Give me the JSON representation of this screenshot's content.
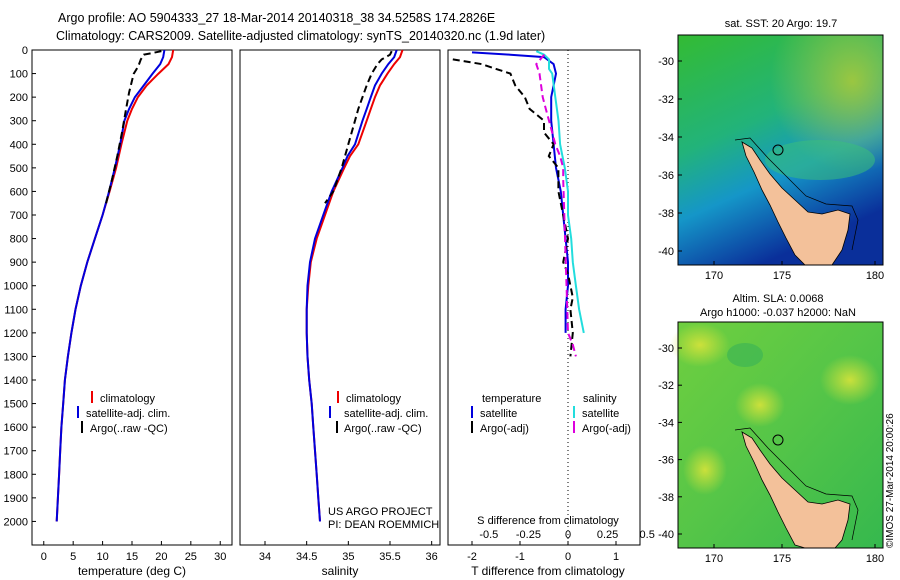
{
  "header": {
    "line1": "Argo profile: AO 5904333_27 18-Mar-2014 20140318_38 34.5258S 174.2826E",
    "line2": "Climatology: CARS2009. Satellite-adjusted climatology: synTS_20140320.nc (1.9d later)"
  },
  "colors": {
    "climatology": "#ee0000",
    "satellite": "#0000dd",
    "argo": "#000000",
    "sal_satellite": "#22dddd",
    "sal_argo": "#dd00dd",
    "land": "#f3c19a",
    "coast": "#000000"
  },
  "chart_data": [
    {
      "type": "line",
      "xlabel": "temperature (deg C)",
      "xlim": [
        -2,
        32
      ],
      "ylim": [
        2100,
        0
      ],
      "x_ticks": [
        0,
        5,
        10,
        15,
        20,
        25,
        30
      ],
      "y_ticks": [
        0,
        100,
        200,
        300,
        400,
        500,
        600,
        700,
        800,
        900,
        1000,
        1100,
        1200,
        1300,
        1400,
        1500,
        1600,
        1700,
        1800,
        1900,
        2000
      ],
      "legend": [
        "climatology",
        "satellite-adj. clim.",
        "Argo(..raw -QC)"
      ],
      "series": [
        {
          "name": "climatology",
          "points": [
            [
              22,
              0
            ],
            [
              21.8,
              30
            ],
            [
              21.2,
              60
            ],
            [
              19.5,
              100
            ],
            [
              17.5,
              150
            ],
            [
              16,
              200
            ],
            [
              15,
              250
            ],
            [
              14.2,
              300
            ],
            [
              13.2,
              400
            ],
            [
              12.3,
              500
            ],
            [
              11.2,
              600
            ],
            [
              10,
              700
            ],
            [
              8.7,
              800
            ],
            [
              7.4,
              900
            ],
            [
              6.3,
              1000
            ],
            [
              5.4,
              1100
            ],
            [
              4.7,
              1200
            ],
            [
              4.1,
              1300
            ],
            [
              3.6,
              1400
            ],
            [
              3.3,
              1500
            ],
            [
              3.0,
              1600
            ],
            [
              2.8,
              1700
            ],
            [
              2.6,
              1800
            ],
            [
              2.4,
              1900
            ],
            [
              2.2,
              2000
            ]
          ]
        },
        {
          "name": "satellite-adj. clim.",
          "points": [
            [
              20.5,
              0
            ],
            [
              20.3,
              30
            ],
            [
              19.8,
              60
            ],
            [
              18.5,
              100
            ],
            [
              17,
              150
            ],
            [
              15.5,
              200
            ],
            [
              14.5,
              250
            ],
            [
              13.7,
              300
            ],
            [
              13,
              400
            ],
            [
              12.1,
              500
            ],
            [
              11.1,
              600
            ],
            [
              10,
              700
            ],
            [
              8.7,
              800
            ],
            [
              7.4,
              900
            ],
            [
              6.3,
              1000
            ],
            [
              5.4,
              1100
            ],
            [
              4.7,
              1200
            ],
            [
              4.1,
              1300
            ],
            [
              3.6,
              1400
            ],
            [
              3.3,
              1500
            ],
            [
              3.0,
              1600
            ],
            [
              2.8,
              1700
            ],
            [
              2.6,
              1800
            ],
            [
              2.4,
              1900
            ],
            [
              2.2,
              2000
            ]
          ]
        },
        {
          "name": "Argo(..raw -QC)",
          "points": [
            [
              20,
              5
            ],
            [
              17,
              20
            ],
            [
              16.5,
              40
            ],
            [
              16.2,
              60
            ],
            [
              15.8,
              80
            ],
            [
              15.3,
              100
            ],
            [
              15,
              130
            ],
            [
              14.5,
              180
            ],
            [
              14,
              250
            ],
            [
              13.3,
              350
            ],
            [
              12.5,
              450
            ],
            [
              11.6,
              550
            ],
            [
              10.6,
              650
            ]
          ]
        }
      ]
    },
    {
      "type": "line",
      "xlabel": "salinity",
      "xlim": [
        33.7,
        36.1
      ],
      "ylim": [
        2100,
        0
      ],
      "x_ticks": [
        34,
        34.5,
        35,
        35.5,
        36
      ],
      "legend": [
        "climatology",
        "satellite-adj. clim.",
        "Argo(..raw -QC)"
      ],
      "annotations": [
        "US ARGO PROJECT",
        "PI: DEAN ROEMMICH"
      ],
      "series": [
        {
          "name": "climatology",
          "points": [
            [
              35.65,
              0
            ],
            [
              35.62,
              30
            ],
            [
              35.55,
              60
            ],
            [
              35.47,
              100
            ],
            [
              35.38,
              150
            ],
            [
              35.32,
              200
            ],
            [
              35.27,
              250
            ],
            [
              35.22,
              300
            ],
            [
              35.12,
              400
            ],
            [
              35.02,
              450
            ],
            [
              34.95,
              500
            ],
            [
              34.82,
              600
            ],
            [
              34.72,
              700
            ],
            [
              34.62,
              800
            ],
            [
              34.55,
              900
            ],
            [
              34.52,
              1000
            ],
            [
              34.5,
              1100
            ],
            [
              34.5,
              1200
            ],
            [
              34.51,
              1300
            ],
            [
              34.53,
              1400
            ],
            [
              34.56,
              1500
            ],
            [
              34.58,
              1600
            ],
            [
              34.6,
              1700
            ],
            [
              34.62,
              1800
            ],
            [
              34.64,
              1900
            ],
            [
              34.66,
              2000
            ]
          ]
        },
        {
          "name": "satellite-adj. clim.",
          "points": [
            [
              35.58,
              0
            ],
            [
              35.55,
              30
            ],
            [
              35.48,
              60
            ],
            [
              35.4,
              100
            ],
            [
              35.32,
              150
            ],
            [
              35.27,
              200
            ],
            [
              35.22,
              250
            ],
            [
              35.17,
              300
            ],
            [
              35.08,
              400
            ],
            [
              34.99,
              450
            ],
            [
              34.93,
              500
            ],
            [
              34.8,
              600
            ],
            [
              34.7,
              700
            ],
            [
              34.6,
              800
            ],
            [
              34.54,
              900
            ],
            [
              34.51,
              1000
            ],
            [
              34.5,
              1100
            ],
            [
              34.5,
              1200
            ],
            [
              34.51,
              1300
            ],
            [
              34.53,
              1400
            ],
            [
              34.56,
              1500
            ],
            [
              34.58,
              1600
            ],
            [
              34.6,
              1700
            ],
            [
              34.62,
              1800
            ],
            [
              34.64,
              1900
            ],
            [
              34.66,
              2000
            ]
          ]
        },
        {
          "name": "Argo(..raw -QC)",
          "points": [
            [
              35.52,
              5
            ],
            [
              35.5,
              20
            ],
            [
              35.4,
              40
            ],
            [
              35.35,
              60
            ],
            [
              35.28,
              100
            ],
            [
              35.22,
              150
            ],
            [
              35.17,
              200
            ],
            [
              35.12,
              250
            ],
            [
              35.08,
              300
            ],
            [
              35.0,
              400
            ],
            [
              34.92,
              500
            ],
            [
              34.82,
              600
            ],
            [
              34.72,
              650
            ]
          ]
        }
      ]
    },
    {
      "type": "line",
      "xlabel": "T difference from climatology",
      "xlabel2": "S difference from climatology",
      "xlim": [
        -2.5,
        1.5
      ],
      "ylim": [
        2100,
        0
      ],
      "x_ticks": [
        "-2",
        "-1",
        "0",
        "1"
      ],
      "x_ticks2": [
        "-0.5",
        "-0.25",
        "0",
        "0.25",
        "0.5"
      ],
      "legend": {
        "temperature": [
          "satellite",
          "Argo(-adj)"
        ],
        "salinity": [
          "satellite",
          "Argo(-adj)"
        ]
      },
      "legend_headers": [
        "temperature",
        "salinity"
      ],
      "series": [
        {
          "name": "temperature satellite",
          "points": [
            [
              -2,
              10
            ],
            [
              -1.2,
              20
            ],
            [
              -0.5,
              30
            ],
            [
              -0.3,
              60
            ],
            [
              -0.25,
              100
            ],
            [
              -0.3,
              150
            ],
            [
              -0.35,
              200
            ],
            [
              -0.35,
              300
            ],
            [
              -0.3,
              400
            ],
            [
              -0.25,
              500
            ],
            [
              -0.15,
              600
            ],
            [
              -0.1,
              700
            ],
            [
              -0.05,
              800
            ],
            [
              0,
              900
            ],
            [
              0,
              1000
            ],
            [
              -0.05,
              1100
            ],
            [
              -0.05,
              1200
            ]
          ]
        },
        {
          "name": "temperature Argo(-adj)",
          "points": [
            [
              -2.4,
              40
            ],
            [
              -1.8,
              60
            ],
            [
              -1.5,
              80
            ],
            [
              -1.2,
              100
            ],
            [
              -1.1,
              150
            ],
            [
              -0.9,
              200
            ],
            [
              -0.8,
              250
            ],
            [
              -0.5,
              300
            ],
            [
              -0.5,
              350
            ],
            [
              -0.3,
              400
            ],
            [
              -0.4,
              450
            ],
            [
              -0.2,
              500
            ],
            [
              -0.2,
              600
            ],
            [
              -0.1,
              700
            ],
            [
              0,
              800
            ],
            [
              -0.1,
              900
            ],
            [
              0,
              950
            ],
            [
              0.05,
              1000
            ],
            [
              0.1,
              1050
            ],
            [
              0.05,
              1100
            ],
            [
              0.1,
              1200
            ],
            [
              0.05,
              1300
            ]
          ]
        },
        {
          "name": "salinity satellite",
          "points": [
            [
              -0.2,
              5
            ],
            [
              -0.15,
              20
            ],
            [
              -0.12,
              40
            ],
            [
              -0.12,
              60
            ],
            [
              -0.12,
              80
            ],
            [
              -0.1,
              100
            ],
            [
              -0.08,
              200
            ],
            [
              -0.06,
              300
            ],
            [
              -0.05,
              400
            ],
            [
              -0.02,
              500
            ],
            [
              0,
              600
            ],
            [
              0,
              700
            ],
            [
              0.02,
              800
            ],
            [
              0.03,
              900
            ],
            [
              0.05,
              1000
            ],
            [
              0.07,
              1100
            ],
            [
              0.1,
              1200
            ]
          ]
        },
        {
          "name": "salinity Argo(-adj)",
          "points": [
            [
              -0.15,
              20
            ],
            [
              -0.2,
              60
            ],
            [
              -0.18,
              100
            ],
            [
              -0.17,
              150
            ],
            [
              -0.16,
              200
            ],
            [
              -0.14,
              250
            ],
            [
              -0.12,
              300
            ],
            [
              -0.1,
              350
            ],
            [
              -0.08,
              400
            ],
            [
              -0.05,
              450
            ],
            [
              -0.03,
              500
            ],
            [
              -0.03,
              550
            ],
            [
              0,
              1200
            ],
            [
              0.03,
              1250
            ],
            [
              0.05,
              1300
            ]
          ]
        }
      ]
    }
  ],
  "maps": {
    "sst": {
      "title": "sat. SST: 20 Argo: 19.7",
      "yticks": [
        "-30",
        "-32",
        "-34",
        "-36",
        "-38",
        "-40"
      ],
      "xticks": [
        "170",
        "175",
        "180"
      ]
    },
    "sla": {
      "title": "Altim. SLA: 0.0068",
      "subtitle": "Argo h1000: -0.037 h2000: NaN",
      "yticks": [
        "-30",
        "-32",
        "-34",
        "-36",
        "-38",
        "-40"
      ],
      "xticks": [
        "170",
        "175",
        "180"
      ]
    },
    "credit": "©IMOS 27-Mar-2014 20:00:26"
  }
}
